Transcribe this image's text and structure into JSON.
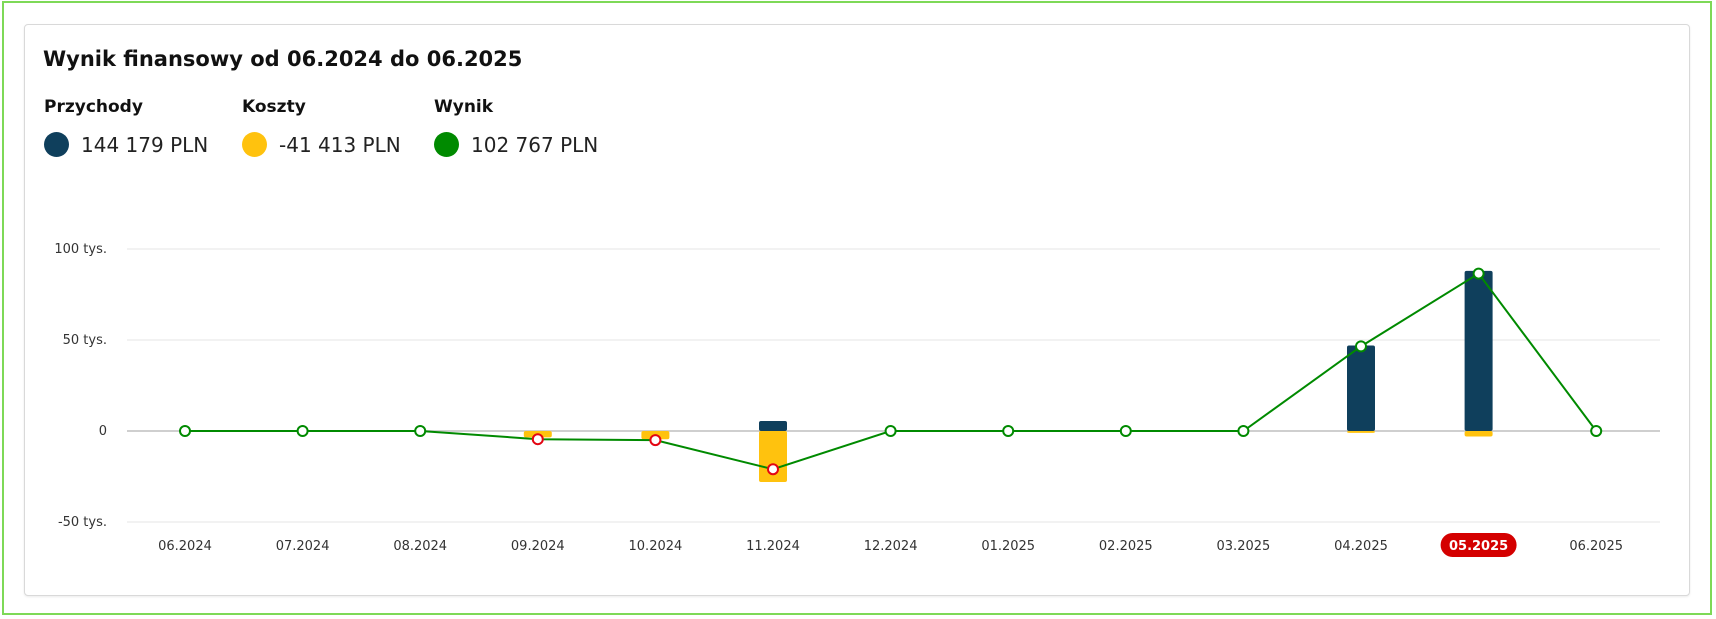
{
  "chart_data": {
    "type": "bar",
    "title": "Wynik finansowy od 06.2024 do 06.2025",
    "categories": [
      "06.2024",
      "07.2024",
      "08.2024",
      "09.2024",
      "10.2024",
      "11.2024",
      "12.2024",
      "01.2025",
      "02.2025",
      "03.2025",
      "04.2025",
      "05.2025",
      "06.2025"
    ],
    "selected_category": "05.2025",
    "series": [
      {
        "name": "Przychody",
        "kind": "bar",
        "color": "#0f3f5c",
        "values": [
          0,
          0,
          0,
          0,
          0,
          5500,
          0,
          0,
          0,
          0,
          47000,
          88000,
          0
        ]
      },
      {
        "name": "Koszty",
        "kind": "bar",
        "color": "#ffc20e",
        "values": [
          0,
          0,
          0,
          -3500,
          -4500,
          -28000,
          0,
          0,
          0,
          0,
          -1000,
          -3000,
          0
        ]
      },
      {
        "name": "Wynik",
        "kind": "line",
        "color": "#008a00",
        "values": [
          0,
          0,
          0,
          -4500,
          -5000,
          -21000,
          0,
          0,
          0,
          0,
          46500,
          86500,
          0
        ]
      }
    ],
    "legend": [
      {
        "label": "Przychody",
        "value": "144 179 PLN",
        "color": "#0f3f5c"
      },
      {
        "label": "Koszty",
        "value": "-41 413 PLN",
        "color": "#ffc20e"
      },
      {
        "label": "Wynik",
        "value": "102 767 PLN",
        "color": "#008a00"
      }
    ],
    "yticks": [
      {
        "value": 100000,
        "label": "100 tys."
      },
      {
        "value": 50000,
        "label": "50 tys."
      },
      {
        "value": 0,
        "label": "0"
      },
      {
        "value": -50000,
        "label": "-50 tys."
      }
    ],
    "ylim": [
      -50000,
      100000
    ],
    "negative_point_color": "#e30613",
    "selected_color": "#d40000",
    "grid": true,
    "legend_placement": "top-left"
  }
}
